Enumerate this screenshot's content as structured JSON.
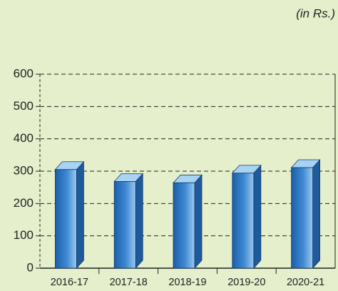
{
  "chart_data": {
    "type": "bar3d",
    "annotation": "(in Rs.)",
    "categories": [
      "2016-17",
      "2017-18",
      "2018-19",
      "2019-20",
      "2020-21"
    ],
    "values": [
      305,
      268,
      264,
      294,
      311
    ],
    "color": "#2f78c4",
    "ylim": [
      0,
      600
    ],
    "yticks": [
      0,
      100,
      200,
      300,
      400,
      500,
      600
    ],
    "grid": true
  }
}
